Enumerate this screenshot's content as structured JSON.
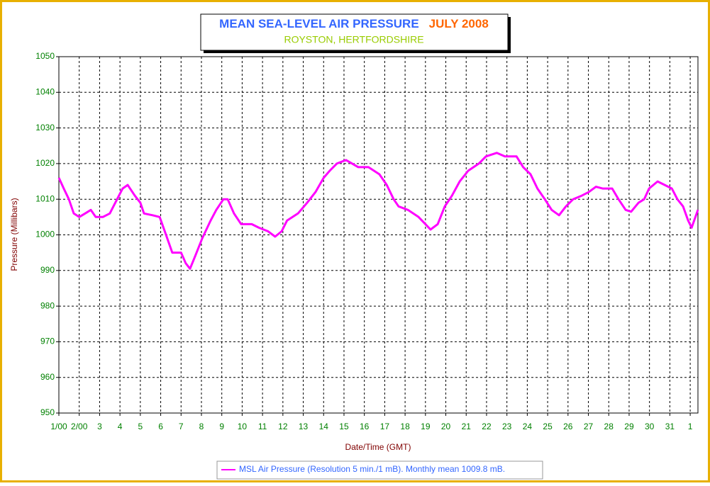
{
  "chart_data": {
    "type": "line",
    "title": "MEAN SEA-LEVEL AIR PRESSURE",
    "title_month": "JULY 2008",
    "subtitle": "ROYSTON, HERTFORDSHIRE",
    "x_label": "Date/Time (GMT)",
    "y_label": "Pressure (Millibars)",
    "grid": true,
    "legend": "bottom",
    "xlim": [
      0,
      31.38
    ],
    "ylim": [
      950,
      1050
    ],
    "yticks": [
      950,
      960,
      970,
      980,
      990,
      1000,
      1010,
      1020,
      1030,
      1040,
      1050
    ],
    "xticks": [
      {
        "value": 0,
        "label": "1/00"
      },
      {
        "value": 1,
        "label": "2/00"
      },
      {
        "value": 2,
        "label": "3"
      },
      {
        "value": 3,
        "label": "4"
      },
      {
        "value": 4,
        "label": "5"
      },
      {
        "value": 5,
        "label": "6"
      },
      {
        "value": 6,
        "label": "7"
      },
      {
        "value": 7,
        "label": "8"
      },
      {
        "value": 8,
        "label": "9"
      },
      {
        "value": 9,
        "label": "10"
      },
      {
        "value": 10,
        "label": "11"
      },
      {
        "value": 11,
        "label": "12"
      },
      {
        "value": 12,
        "label": "13"
      },
      {
        "value": 13,
        "label": "14"
      },
      {
        "value": 14,
        "label": "15"
      },
      {
        "value": 15,
        "label": "16"
      },
      {
        "value": 16,
        "label": "17"
      },
      {
        "value": 17,
        "label": "18"
      },
      {
        "value": 18,
        "label": "19"
      },
      {
        "value": 19,
        "label": "20"
      },
      {
        "value": 20,
        "label": "21"
      },
      {
        "value": 21,
        "label": "22"
      },
      {
        "value": 22,
        "label": "23"
      },
      {
        "value": 23,
        "label": "24"
      },
      {
        "value": 24,
        "label": "25"
      },
      {
        "value": 25,
        "label": "26"
      },
      {
        "value": 26,
        "label": "27"
      },
      {
        "value": 27,
        "label": "28"
      },
      {
        "value": 28,
        "label": "29"
      },
      {
        "value": 29,
        "label": "30"
      },
      {
        "value": 30,
        "label": "31"
      },
      {
        "value": 31,
        "label": "1"
      }
    ],
    "x": [
      0,
      0.24,
      0.49,
      0.73,
      1.0,
      1.29,
      1.57,
      1.81,
      2.16,
      2.5,
      2.86,
      3.13,
      3.38,
      3.73,
      4.0,
      4.18,
      4.6,
      4.95,
      5.2,
      5.57,
      6.0,
      6.23,
      6.44,
      6.69,
      7.04,
      7.45,
      7.73,
      8.08,
      8.29,
      8.6,
      8.95,
      9.47,
      9.82,
      10.27,
      10.62,
      10.94,
      11.2,
      11.74,
      12.19,
      12.6,
      13.0,
      13.3,
      13.65,
      14.1,
      14.4,
      14.7,
      15.2,
      15.74,
      16.1,
      16.44,
      16.68,
      17.14,
      17.66,
      18.0,
      18.25,
      18.6,
      18.95,
      19.3,
      19.68,
      20.1,
      20.62,
      20.97,
      21.5,
      21.9,
      22.47,
      22.8,
      23.16,
      23.5,
      23.86,
      24.2,
      24.56,
      24.9,
      25.25,
      25.67,
      26.02,
      26.37,
      26.7,
      27.17,
      27.48,
      27.83,
      28.1,
      28.46,
      28.74,
      28.98,
      29.4,
      29.75,
      30.1,
      30.37,
      30.65,
      30.9,
      31.07,
      31.38
    ],
    "series": [
      {
        "name": "MSL Air Pressure (Resolution 5 min./1 mB). Monthly mean 1009.8 mB.",
        "color": "#ff00ff",
        "values": [
          1016,
          1013,
          1010,
          1006,
          1005,
          1006,
          1007,
          1005,
          1005,
          1006,
          1010,
          1013,
          1014,
          1011,
          1009,
          1006,
          1005.5,
          1005,
          1001,
          995,
          995,
          992,
          990.5,
          994,
          999,
          1004,
          1007,
          1010,
          1010,
          1006,
          1003,
          1003,
          1002,
          1001,
          999.5,
          1001,
          1004,
          1006,
          1009,
          1012,
          1016,
          1018,
          1020,
          1021,
          1020,
          1019,
          1019,
          1017,
          1014,
          1010,
          1008,
          1007,
          1005,
          1003,
          1001.5,
          1003,
          1008,
          1011,
          1015,
          1018,
          1020,
          1022,
          1023,
          1022,
          1022,
          1019,
          1017,
          1013,
          1010,
          1007,
          1005.5,
          1008,
          1010,
          1011,
          1012,
          1013.5,
          1013,
          1013,
          1010,
          1007,
          1006.5,
          1009,
          1010,
          1013,
          1015,
          1014,
          1013,
          1010,
          1008,
          1004,
          1002,
          1007
        ]
      }
    ]
  }
}
